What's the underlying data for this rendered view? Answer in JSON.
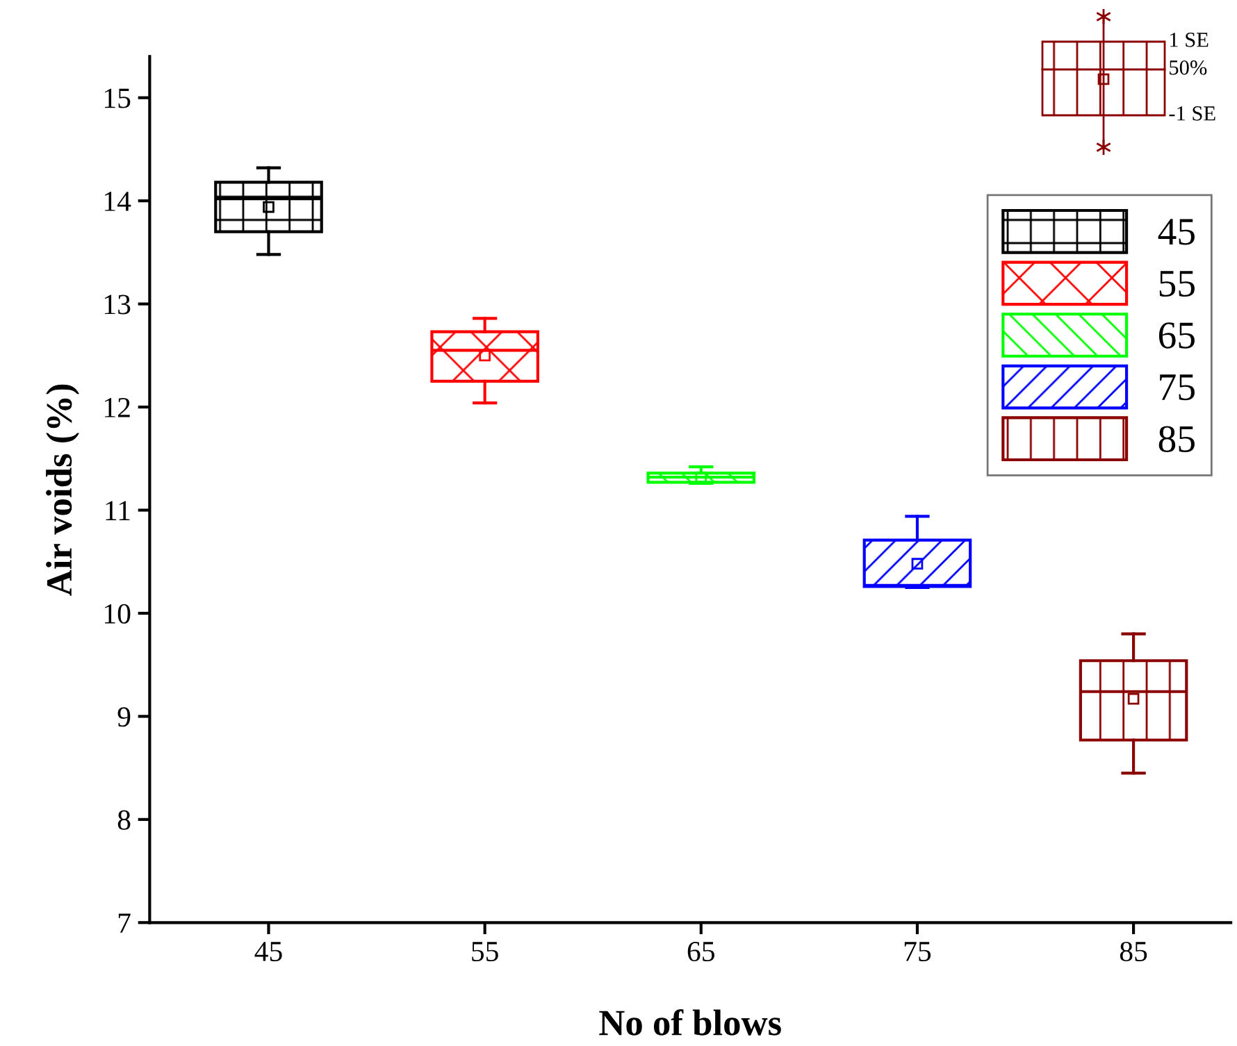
{
  "chart_data": {
    "type": "box",
    "xlabel": "No of blows",
    "ylabel": "Air voids (%)",
    "categories": [
      "45",
      "55",
      "65",
      "75",
      "85"
    ],
    "series": [
      {
        "name": "45",
        "color": "#000000",
        "boxes": [
          {
            "low": 13.48,
            "q1": 13.7,
            "median": 14.02,
            "q3": 14.18,
            "high": 14.32,
            "mean": 13.94
          },
          null,
          null,
          null,
          null
        ]
      },
      {
        "name": "55",
        "color": "#ff0000",
        "boxes": [
          null,
          {
            "low": 12.04,
            "q1": 12.25,
            "median": 12.55,
            "q3": 12.73,
            "high": 12.86,
            "mean": 12.5
          },
          null,
          null,
          null
        ]
      },
      {
        "name": "65",
        "color": "#00ff00",
        "boxes": [
          null,
          null,
          {
            "low": 11.26,
            "q1": 11.27,
            "median": 11.32,
            "q3": 11.36,
            "high": 11.42,
            "mean": 11.32
          },
          null,
          null
        ]
      },
      {
        "name": "75",
        "color": "#0000ff",
        "boxes": [
          null,
          null,
          null,
          {
            "low": 10.25,
            "q1": 10.26,
            "median": 10.27,
            "q3": 10.71,
            "high": 10.94,
            "mean": 10.48
          },
          null
        ]
      },
      {
        "name": "85",
        "color": "#8b0000",
        "boxes": [
          null,
          null,
          null,
          null,
          {
            "low": 8.45,
            "q1": 8.77,
            "median": 9.24,
            "q3": 9.54,
            "high": 9.8,
            "mean": 9.17
          }
        ]
      }
    ],
    "ylim": [
      7,
      15.4
    ],
    "yticks": [
      7,
      8,
      9,
      10,
      11,
      12,
      13,
      14,
      15
    ],
    "legend": "top right",
    "grid": false,
    "annotations": [
      "1 SE",
      "50%",
      "-1 SE"
    ]
  }
}
